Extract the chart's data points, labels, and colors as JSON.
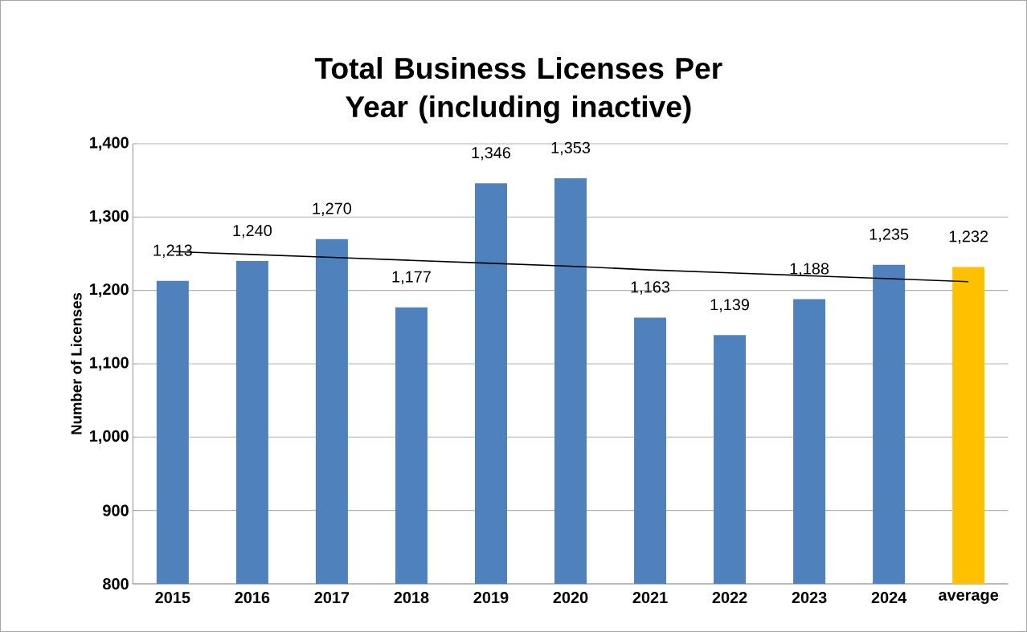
{
  "chart_data": {
    "type": "bar",
    "title": "Total Business Licenses Per Year (including inactive)",
    "ylabel": "Number of Licenses",
    "categories": [
      "2015",
      "2016",
      "2017",
      "2018",
      "2019",
      "2020",
      "2021",
      "2022",
      "2023",
      "2024",
      "average"
    ],
    "series": [
      {
        "values": [
          1213,
          1240,
          1270,
          1177,
          1346,
          1353,
          1163,
          1139,
          1188,
          1235,
          1232
        ],
        "colors": [
          "#4f81bd",
          "#4f81bd",
          "#4f81bd",
          "#4f81bd",
          "#4f81bd",
          "#4f81bd",
          "#4f81bd",
          "#4f81bd",
          "#4f81bd",
          "#4f81bd",
          "#ffc000"
        ],
        "value_labels": [
          "1,213",
          "1,240",
          "1,270",
          "1,177",
          "1,346",
          "1,353",
          "1,163",
          "1,139",
          "1,188",
          "1,235",
          "1,232"
        ]
      },
      {
        "type": "line",
        "values": [
          1253,
          1249,
          1245,
          1241,
          1237,
          1233,
          1228,
          1224,
          1220,
          1216,
          1212
        ],
        "color": "#000000"
      }
    ],
    "ylim": [
      800,
      1400
    ],
    "yticks": [
      {
        "value": 800,
        "label": "800"
      },
      {
        "value": 900,
        "label": "900"
      },
      {
        "value": 1000,
        "label": "1,000"
      },
      {
        "value": 1100,
        "label": "1,100"
      },
      {
        "value": 1200,
        "label": "1,200"
      },
      {
        "value": 1300,
        "label": "1,300"
      },
      {
        "value": 1400,
        "label": "1,400"
      }
    ],
    "grid": "y"
  }
}
